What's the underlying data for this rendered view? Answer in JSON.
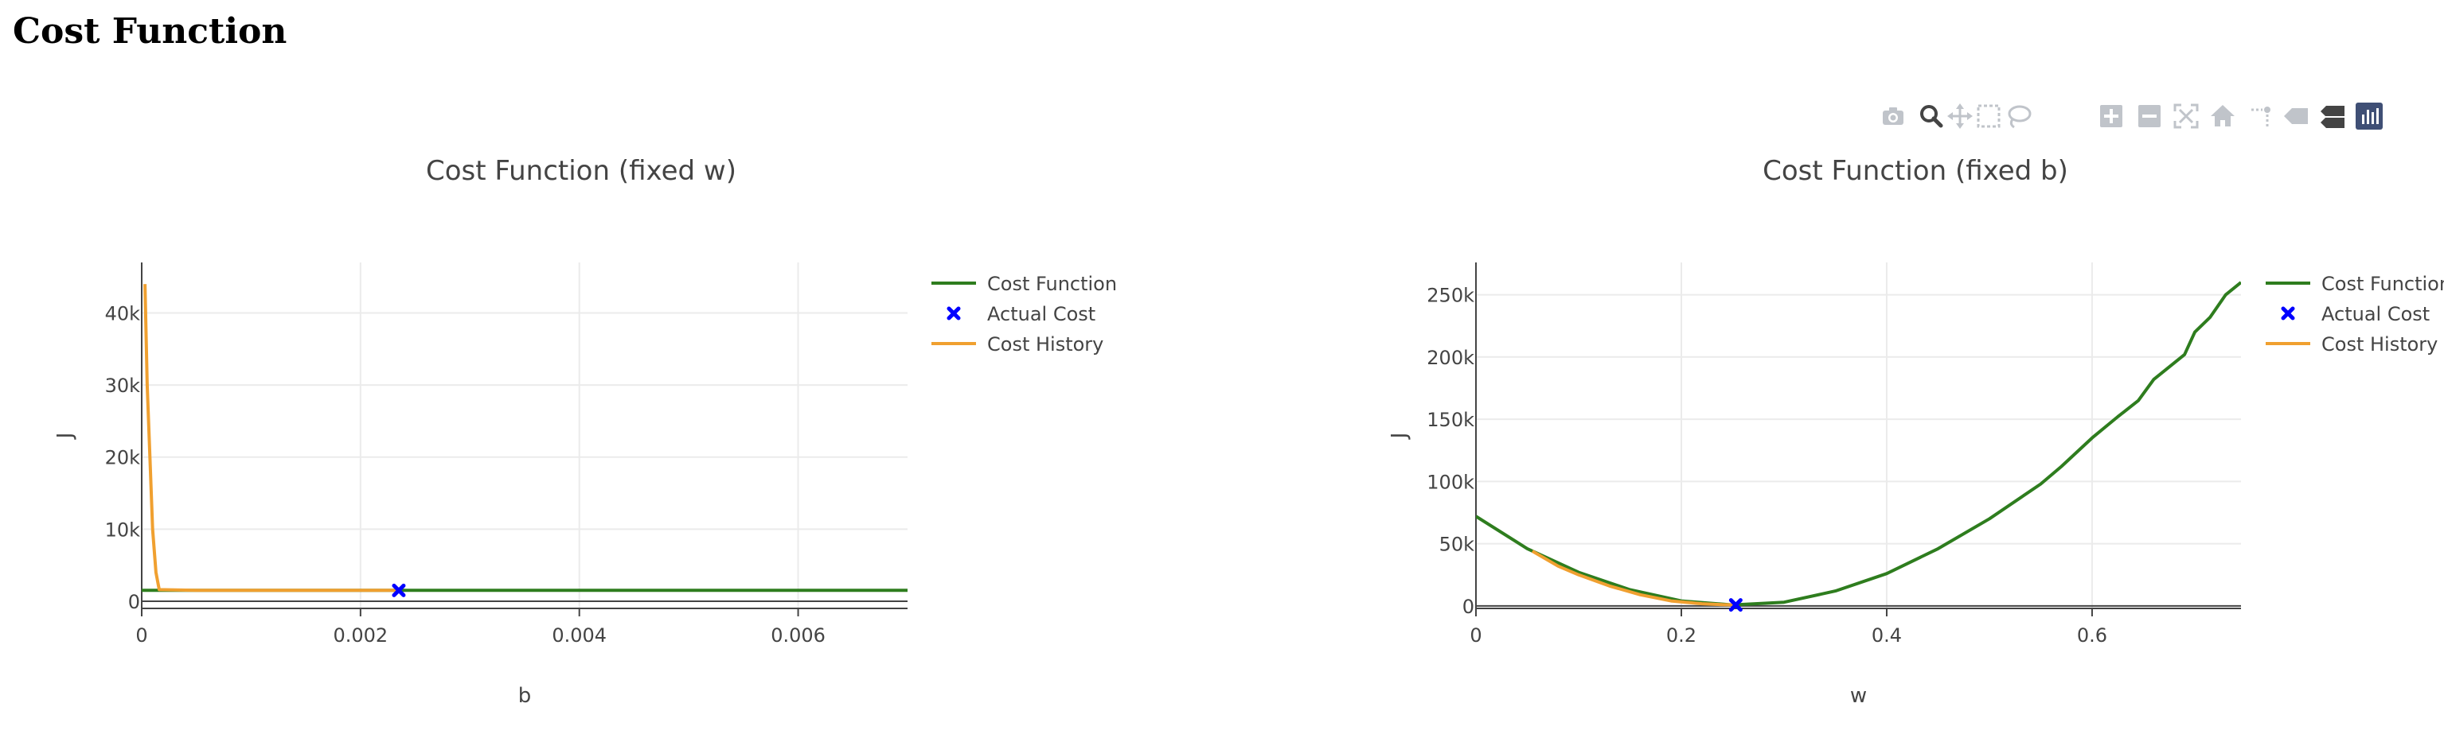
{
  "page": {
    "title": "Cost Function"
  },
  "toolbar": {
    "buttons": [
      {
        "name": "camera-icon",
        "active": false
      },
      {
        "name": "zoom-icon",
        "active": true
      },
      {
        "name": "pan-icon",
        "active": false
      },
      {
        "name": "box-select-icon",
        "active": false
      },
      {
        "name": "lasso-select-icon",
        "active": false
      },
      {
        "name": "zoom-in-icon",
        "active": false
      },
      {
        "name": "zoom-out-icon",
        "active": false
      },
      {
        "name": "autoscale-icon",
        "active": false
      },
      {
        "name": "home-icon",
        "active": false
      },
      {
        "name": "spike-lines-icon",
        "active": false
      },
      {
        "name": "hover-closest-icon",
        "active": false
      },
      {
        "name": "hover-compare-icon",
        "active": true
      },
      {
        "name": "plotly-logo-icon",
        "active": false
      }
    ]
  },
  "chart_data": [
    {
      "type": "line",
      "title": "Cost Function (fixed w)",
      "xlabel": "b",
      "ylabel": "J",
      "xlim": [
        0,
        0.007
      ],
      "ylim": [
        -1000,
        47000
      ],
      "xticks": [
        0,
        0.002,
        0.004,
        0.006
      ],
      "xtick_labels": [
        "0",
        "0.002",
        "0.004",
        "0.006"
      ],
      "yticks": [
        0,
        10000,
        20000,
        30000,
        40000
      ],
      "ytick_labels": [
        "0",
        "10k",
        "20k",
        "30k",
        "40k"
      ],
      "grid": true,
      "legend_position": "top-right",
      "series": [
        {
          "name": "Cost Function",
          "kind": "line",
          "color": "#2e7d1e",
          "x": [
            0,
            0.001,
            0.002,
            0.003,
            0.004,
            0.005,
            0.006,
            0.007
          ],
          "y": [
            1500,
            1500,
            1500,
            1500,
            1500,
            1500,
            1500,
            1500
          ]
        },
        {
          "name": "Actual Cost",
          "kind": "marker",
          "color": "#0000ff",
          "x": [
            0.00235
          ],
          "y": [
            1500
          ]
        },
        {
          "name": "Cost History",
          "kind": "line",
          "color": "#f0a030",
          "x": [
            3e-05,
            5e-05,
            8e-05,
            0.0001,
            0.00013,
            0.00016,
            0.0005,
            0.001,
            0.0015,
            0.002,
            0.00235
          ],
          "y": [
            44000,
            30000,
            18000,
            10000,
            4000,
            1600,
            1500,
            1500,
            1500,
            1500,
            1500
          ]
        }
      ]
    },
    {
      "type": "line",
      "title": "Cost Function (fixed b)",
      "xlabel": "w",
      "ylabel": "J",
      "xlim": [
        0,
        0.745
      ],
      "ylim": [
        -2000,
        276000
      ],
      "xticks": [
        0,
        0.2,
        0.4,
        0.6
      ],
      "xtick_labels": [
        "0",
        "0.2",
        "0.4",
        "0.6"
      ],
      "yticks": [
        0,
        50000,
        100000,
        150000,
        200000,
        250000
      ],
      "ytick_labels": [
        "0",
        "50k",
        "100k",
        "150k",
        "200k",
        "250k"
      ],
      "grid": true,
      "legend_position": "top-right",
      "series": [
        {
          "name": "Cost Function",
          "kind": "line",
          "color": "#2e7d1e",
          "x": [
            0,
            0.05,
            0.1,
            0.15,
            0.2,
            0.25,
            0.3,
            0.35,
            0.4,
            0.45,
            0.5,
            0.55,
            0.57,
            0.6,
            0.625,
            0.645,
            0.66,
            0.69,
            0.7,
            0.715,
            0.73,
            0.745
          ],
          "y": [
            72000,
            46000,
            27000,
            13000,
            4000,
            800,
            3000,
            12000,
            26000,
            46000,
            70000,
            98000,
            112000,
            135000,
            152000,
            165000,
            182000,
            202000,
            220000,
            232000,
            250000,
            260000
          ]
        },
        {
          "name": "Actual Cost",
          "kind": "marker",
          "color": "#0000ff",
          "x": [
            0.253
          ],
          "y": [
            800
          ]
        },
        {
          "name": "Cost History",
          "kind": "line",
          "color": "#f0a030",
          "x": [
            0.055,
            0.08,
            0.1,
            0.13,
            0.16,
            0.19,
            0.22,
            0.24,
            0.253
          ],
          "y": [
            44000,
            32000,
            25000,
            16000,
            9000,
            4000,
            1800,
            1000,
            800
          ]
        }
      ]
    }
  ]
}
